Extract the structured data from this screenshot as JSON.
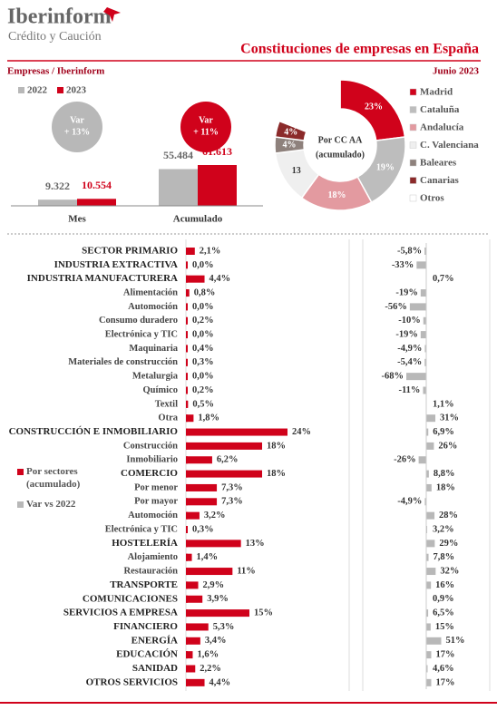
{
  "header": {
    "brand": "Iberinform",
    "tagline": "Crédito y Caución",
    "title": "Constituciones de empresas en España",
    "source": "Empresas / Iberinform",
    "date": "Junio 2023"
  },
  "chart_data": [
    {
      "type": "bar",
      "categories": [
        "Mes",
        "Acumulado"
      ],
      "series": [
        {
          "name": "2022",
          "color": "#b8b8b8",
          "values": [
            9322,
            55484
          ],
          "value_labels": [
            "9.322",
            "55.484"
          ]
        },
        {
          "name": "2023",
          "color": "#d0021b",
          "values": [
            10554,
            61613
          ],
          "value_labels": [
            "10.554",
            "61.613"
          ]
        }
      ],
      "annotations": [
        {
          "text": [
            "Var",
            "+ 13%"
          ],
          "color": "#b8b8b8"
        },
        {
          "text": [
            "Var",
            "+ 11%"
          ],
          "color": "#d0021b"
        }
      ]
    },
    {
      "type": "donut",
      "title": [
        "Por CC AA",
        "(acumulado)"
      ],
      "categories": [
        "Madrid",
        "Cataluña",
        "Andalucía",
        "C. Valenciana",
        "Baleares",
        "Canarias",
        "Otros"
      ],
      "values": [
        23,
        19,
        18,
        13,
        4,
        4,
        19
      ],
      "value_labels": [
        "23%",
        "19%",
        "18%",
        "13",
        "4%",
        "4%",
        null
      ],
      "colors": [
        "#d0021b",
        "#bdbdbd",
        "#e39aa0",
        "#efefef",
        "#8e817c",
        "#8b2a2a",
        "#ffffff"
      ]
    },
    {
      "type": "hbar",
      "categories": [
        "SECTOR PRIMARIO",
        "INDUSTRIA EXTRACTIVA",
        "INDUSTRIA MANUFACTURERA",
        "Alimentación",
        "Automoción",
        "Consumo duradero",
        "Electrónica y TIC",
        "Maquinaria",
        "Materiales de construcción",
        "Metalurgia",
        "Químico",
        "Textil",
        "Otra",
        "CONSTRUCCIÓN E INMOBILIARIO",
        "Construcción",
        "Inmobiliario",
        "COMERCIO",
        "Por menor",
        "Por mayor",
        "Automoción",
        "Electrónica y TIC",
        "HOSTELERÍA",
        "Alojamiento",
        "Restauración",
        "TRANSPORTE",
        "COMUNICACIONES",
        "SERVICIOS A EMPRESA",
        "FINANCIERO",
        "ENERGÍA",
        "EDUCACIÓN",
        "SANIDAD",
        "OTROS SERVICIOS"
      ],
      "series": [
        {
          "name": "Por sectores (acumulado)",
          "color": "#d0021b",
          "values": [
            2.1,
            0.0,
            4.4,
            0.8,
            0.0,
            0.2,
            0.0,
            0.4,
            0.3,
            0.0,
            0.2,
            0.5,
            1.8,
            24,
            18,
            6.2,
            18,
            7.3,
            7.3,
            3.2,
            0.3,
            13,
            1.4,
            11,
            2.9,
            3.9,
            15,
            5.3,
            3.4,
            1.6,
            2.2,
            4.4
          ],
          "value_labels": [
            "2,1%",
            "0,0%",
            "4,4%",
            "0,8%",
            "0,0%",
            "0,2%",
            "0,0%",
            "0,4%",
            "0,3%",
            "0,0%",
            "0,2%",
            "0,5%",
            "1,8%",
            "24%",
            "18%",
            "6,2%",
            "18%",
            "7,3%",
            "7,3%",
            "3,2%",
            "0,3%",
            "13%",
            "1,4%",
            "11%",
            "2,9%",
            "3,9%",
            "15%",
            "5,3%",
            "3,4%",
            "1,6%",
            "2,2%",
            "4,4%"
          ]
        },
        {
          "name": "Var vs 2022",
          "color": "#b8b8b8",
          "values": [
            -5.8,
            -33,
            0.7,
            -19,
            -56,
            -10,
            -19,
            -4.9,
            -5.4,
            -68,
            -11,
            1.1,
            31,
            6.9,
            26,
            -26,
            8.8,
            18,
            -4.9,
            28,
            3.2,
            29,
            7.8,
            32,
            16,
            0.9,
            6.5,
            15,
            51,
            17,
            4.6,
            17
          ],
          "value_labels": [
            "-5,8%",
            "-33%",
            "0,7%",
            "-19%",
            "-56%",
            "-10%",
            "-19%",
            "-4,9%",
            "-5,4%",
            "-68%",
            "-11%",
            "1,1%",
            "31%",
            "6,9%",
            "26%",
            "-26%",
            "8,8%",
            "18%",
            "-4,9%",
            "28%",
            "3,2%",
            "29%",
            "7,8%",
            "32%",
            "16%",
            "0,9%",
            "6,5%",
            "15%",
            "51%",
            "17%",
            "4,6%",
            "17%"
          ]
        }
      ]
    }
  ]
}
